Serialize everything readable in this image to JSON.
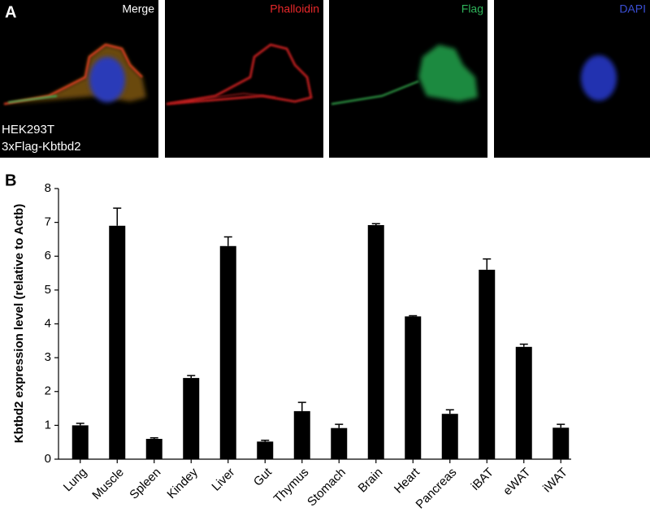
{
  "panel_a": {
    "label": "A",
    "images": [
      {
        "label": "Merge",
        "color": "#ffffff"
      },
      {
        "label": "Phalloidin",
        "color": "#e8282a"
      },
      {
        "label": "Flag",
        "color": "#2fb35a"
      },
      {
        "label": "DAPI",
        "color": "#3b4fd6"
      }
    ],
    "caption": [
      "HEK293T",
      "3xFlag-Kbtbd2"
    ]
  },
  "chart_data": {
    "type": "bar",
    "label": "B",
    "ylabel": "Kbtbd2 expression level (relative to Actb)",
    "categories": [
      "Lung",
      "Muscle",
      "Spleen",
      "Kindey",
      "Liver",
      "Gut",
      "Thymus",
      "Stomach",
      "Brain",
      "Heart",
      "Pancreas",
      "iBAT",
      "eWAT",
      "iWAT"
    ],
    "values": [
      1.0,
      6.9,
      0.6,
      2.4,
      6.3,
      0.52,
      1.42,
      0.92,
      6.92,
      4.22,
      1.34,
      5.6,
      3.32,
      0.93
    ],
    "errors": [
      0.06,
      0.52,
      0.03,
      0.07,
      0.27,
      0.04,
      0.26,
      0.11,
      0.04,
      0.02,
      0.12,
      0.32,
      0.08,
      0.1
    ],
    "color": "#000000",
    "ylim": [
      0,
      8
    ],
    "yticks": [
      0,
      1,
      2,
      3,
      4,
      5,
      6,
      7,
      8
    ]
  }
}
